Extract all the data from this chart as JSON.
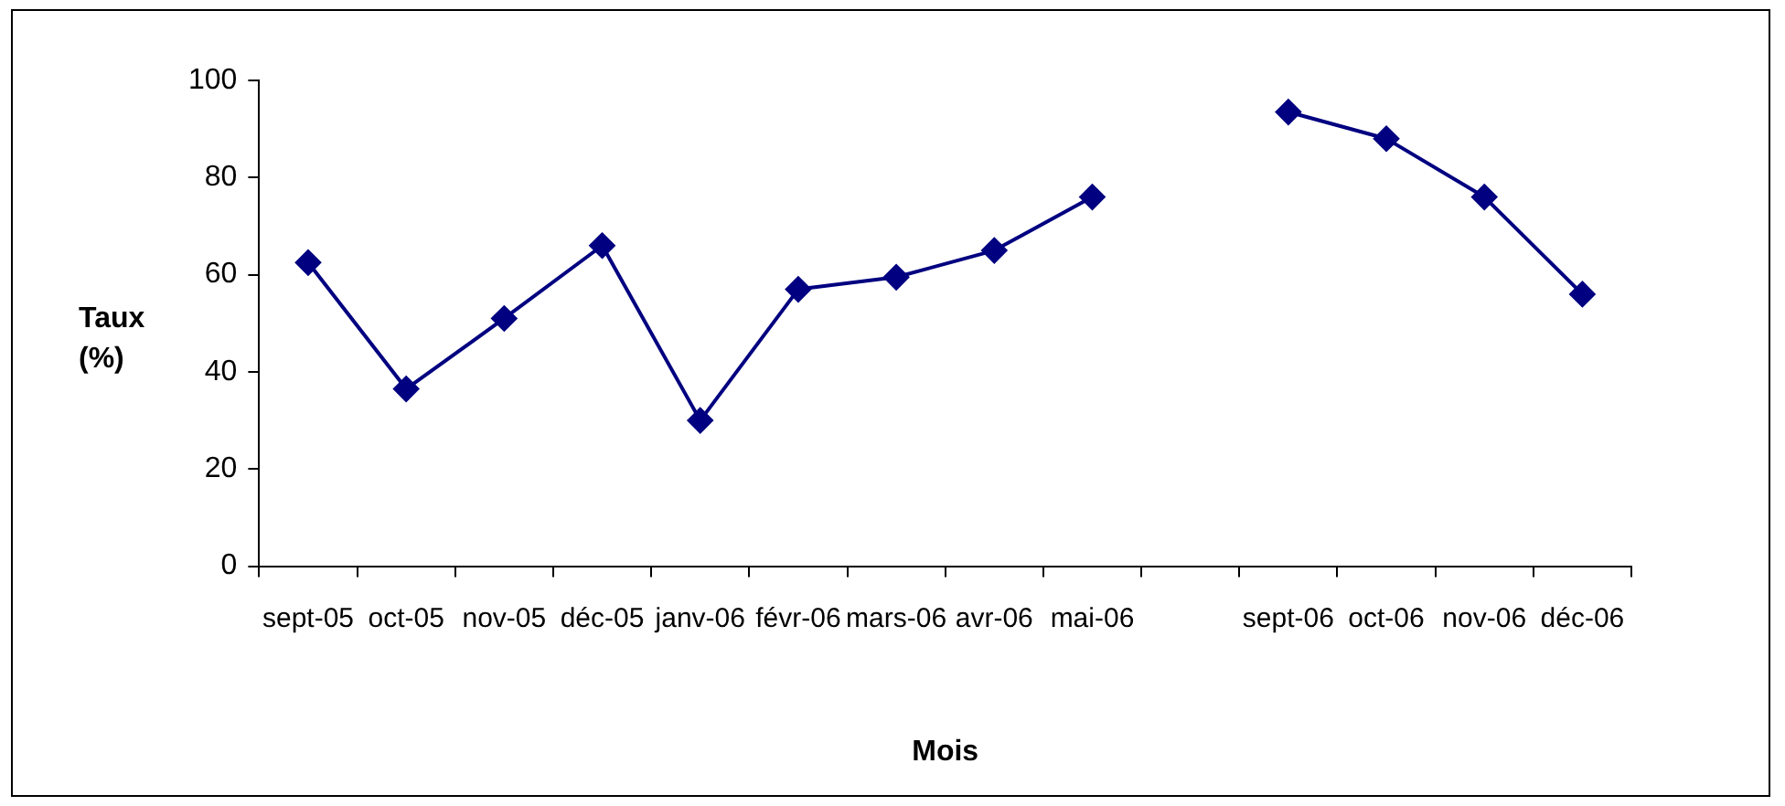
{
  "chart_data": {
    "type": "line",
    "xlabel": "Mois",
    "ylabel": "Taux (%)",
    "categories": [
      "sept-05",
      "oct-05",
      "nov-05",
      "déc-05",
      "janv-06",
      "févr-06",
      "mars-06",
      "avr-06",
      "mai-06",
      null,
      "sept-06",
      "oct-06",
      "nov-06",
      "déc-06"
    ],
    "series": [
      {
        "color": "#000080",
        "values": [
          62.5,
          36.5,
          51,
          66,
          30,
          57,
          59.5,
          65,
          76,
          null,
          93.5,
          88,
          76,
          56
        ]
      }
    ],
    "ylim": [
      0,
      100
    ],
    "yticks": [
      0,
      20,
      40,
      60,
      80,
      100
    ],
    "grid": false,
    "legend": false,
    "marker": "diamond",
    "line_style": "solid"
  }
}
